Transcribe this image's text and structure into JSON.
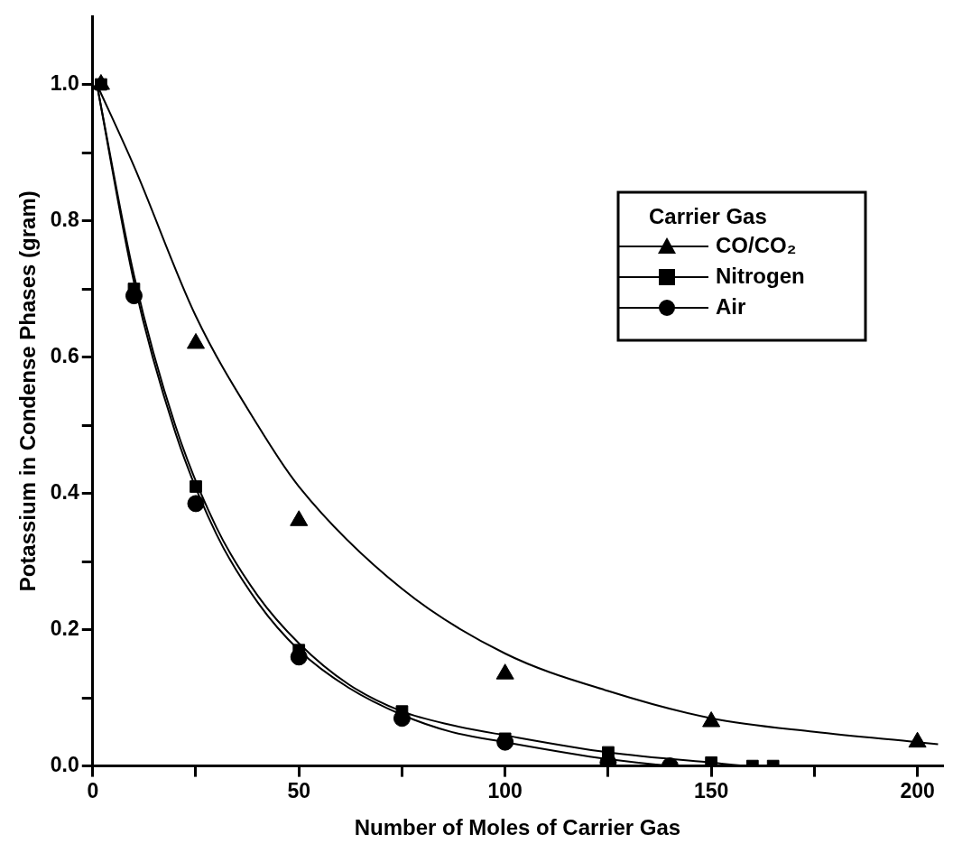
{
  "chart_data": {
    "type": "scatter",
    "xlabel": "Number of Moles of Carrier Gas",
    "ylabel": "Potassium in Condense Phases (gram)",
    "legend_title": "Carrier Gas",
    "legend": "top right",
    "grid": false,
    "xlim": [
      0,
      206
    ],
    "xticks": [
      {
        "value": 0,
        "label": "0"
      },
      {
        "value": 25,
        "label": null
      },
      {
        "value": 50,
        "label": "50"
      },
      {
        "value": 75,
        "label": null
      },
      {
        "value": 100,
        "label": "100"
      },
      {
        "value": 125,
        "label": null
      },
      {
        "value": 150,
        "label": "150"
      },
      {
        "value": 175,
        "label": null
      },
      {
        "value": 200,
        "label": "200"
      }
    ],
    "ylim": [
      0,
      1.1
    ],
    "yticks": [
      {
        "value": 0,
        "label": "0.0"
      },
      {
        "value": 0.1,
        "label": null
      },
      {
        "value": 0.2,
        "label": "0.2"
      },
      {
        "value": 0.3,
        "label": null
      },
      {
        "value": 0.4,
        "label": "0.4"
      },
      {
        "value": 0.5,
        "label": null
      },
      {
        "value": 0.6,
        "label": "0.6"
      },
      {
        "value": 0.7,
        "label": null
      },
      {
        "value": 0.8,
        "label": "0.8"
      },
      {
        "value": 0.9,
        "label": null
      },
      {
        "value": 1.0,
        "label": "1.0"
      }
    ],
    "series": [
      {
        "name": "CO/CO₂",
        "marker": "triangle",
        "color": "#000000",
        "x": [
          2,
          25,
          50,
          100,
          150,
          200
        ],
        "values": [
          1.0,
          0.62,
          0.36,
          0.135,
          0.065,
          0.035
        ]
      },
      {
        "name": "Nitrogen",
        "marker": "square",
        "color": "#000000",
        "x": [
          2,
          10,
          25,
          50,
          75,
          100,
          125,
          150,
          160,
          165
        ],
        "values": [
          1.0,
          0.7,
          0.41,
          0.17,
          0.08,
          0.04,
          0.02,
          0.005,
          0.0,
          0.0
        ]
      },
      {
        "name": "Air",
        "marker": "circle",
        "color": "#000000",
        "x": [
          10,
          25,
          50,
          75,
          100,
          125,
          140
        ],
        "values": [
          0.69,
          0.385,
          0.16,
          0.07,
          0.035,
          0.005,
          0.0
        ]
      },
      {
        "type": "line",
        "marker": "none",
        "color": "#000000",
        "x": [
          1,
          10,
          25,
          40,
          50,
          75,
          100,
          125,
          150,
          175,
          200,
          205
        ],
        "values": [
          1.0,
          0.88,
          0.66,
          0.5,
          0.41,
          0.26,
          0.165,
          0.11,
          0.07,
          0.05,
          0.035,
          0.032
        ]
      },
      {
        "type": "line",
        "marker": "none",
        "color": "#000000",
        "x": [
          1,
          10,
          20,
          30,
          40,
          50,
          62,
          75,
          87,
          100,
          125,
          150,
          160,
          165
        ],
        "values": [
          1.0,
          0.72,
          0.5,
          0.35,
          0.25,
          0.18,
          0.12,
          0.08,
          0.06,
          0.045,
          0.02,
          0.005,
          0.0,
          0.0
        ]
      },
      {
        "type": "line",
        "marker": "none",
        "color": "#000000",
        "x": [
          1,
          10,
          20,
          30,
          40,
          50,
          62,
          75,
          87,
          100,
          125,
          140
        ],
        "values": [
          1.0,
          0.71,
          0.49,
          0.34,
          0.24,
          0.17,
          0.115,
          0.075,
          0.05,
          0.035,
          0.01,
          0.0
        ]
      }
    ]
  }
}
